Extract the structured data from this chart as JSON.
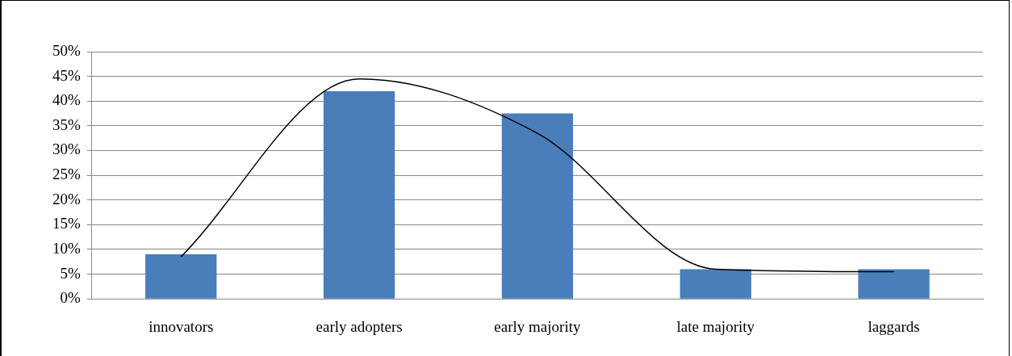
{
  "chart_data": {
    "type": "bar",
    "categories": [
      "innovators",
      "early adopters",
      "early majority",
      "late majority",
      "laggards"
    ],
    "series": [
      {
        "color": "#4a7ebb",
        "values": [
          9,
          42,
          37.5,
          6,
          6
        ]
      },
      {
        "type": "line",
        "color": "#000000",
        "values": [
          8.5,
          44.5,
          33.5,
          6,
          5.5
        ]
      }
    ],
    "ylim": [
      0,
      50
    ],
    "yticks": [
      {
        "value": 0,
        "label": "0%"
      },
      {
        "value": 5,
        "label": "5%"
      },
      {
        "value": 10,
        "label": "10%"
      },
      {
        "value": 15,
        "label": "15%"
      },
      {
        "value": 20,
        "label": "20%"
      },
      {
        "value": 25,
        "label": "25%"
      },
      {
        "value": 30,
        "label": "30%"
      },
      {
        "value": 35,
        "label": "35%"
      },
      {
        "value": 40,
        "label": "40%"
      },
      {
        "value": 45,
        "label": "45%"
      },
      {
        "value": 50,
        "label": "50%"
      }
    ],
    "grid": "y"
  }
}
